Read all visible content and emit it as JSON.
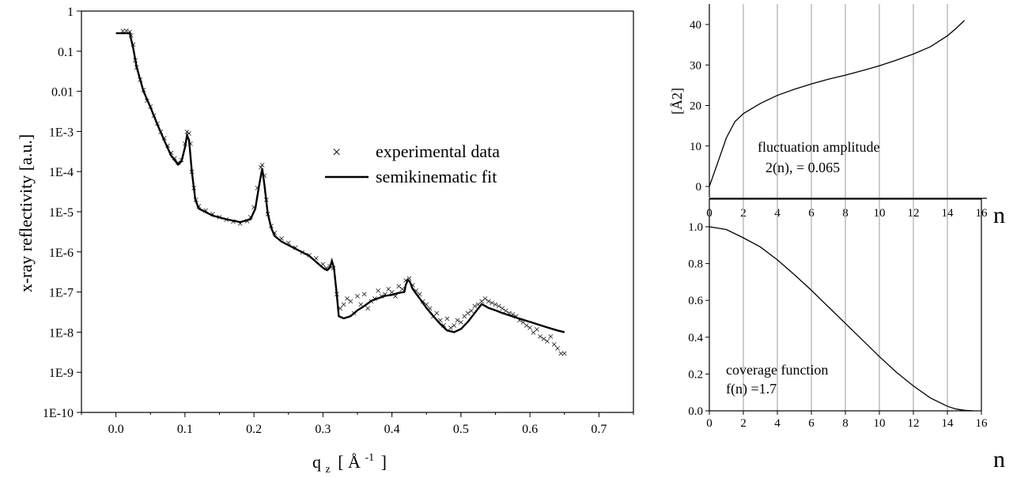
{
  "chart_data": [
    {
      "type": "scatter",
      "y_scale": "log",
      "xlabel_main": "q",
      "xlabel_sub": "z",
      "xlabel_unit_open": "[ Å",
      "xlabel_unit_exp": "-1",
      "xlabel_unit_close": "]",
      "ylabel": "x-ray reflectivity [a.u.]",
      "xlim": [
        -0.05,
        0.75
      ],
      "ylim": [
        1e-10,
        1
      ],
      "x_ticks": [
        0.0,
        0.1,
        0.2,
        0.3,
        0.4,
        0.5,
        0.6,
        0.7
      ],
      "x_tick_labels": [
        "0.0",
        "0.1",
        "0.2",
        "0.3",
        "0.4",
        "0.5",
        "0.6",
        "0.7"
      ],
      "y_tick_labels": [
        "1",
        "0.1",
        "0.01",
        "1E-3",
        "1E-4",
        "1E-5",
        "1E-6",
        "1E-7",
        "1E-8",
        "1E-9",
        "1E-10"
      ],
      "legend": {
        "position": "center-right",
        "entries": [
          {
            "marker": "×",
            "label": "experimental data"
          },
          {
            "marker": "line",
            "label": "semikinematic fit"
          }
        ]
      },
      "series": [
        {
          "name": "semikinematic fit",
          "style": "line",
          "x": [
            0.0,
            0.01,
            0.015,
            0.02,
            0.025,
            0.03,
            0.04,
            0.05,
            0.06,
            0.07,
            0.08,
            0.09,
            0.095,
            0.1,
            0.103,
            0.106,
            0.11,
            0.115,
            0.12,
            0.14,
            0.16,
            0.18,
            0.195,
            0.202,
            0.207,
            0.212,
            0.215,
            0.22,
            0.225,
            0.23,
            0.24,
            0.26,
            0.28,
            0.3,
            0.306,
            0.31,
            0.313,
            0.316,
            0.32,
            0.323,
            0.33,
            0.34,
            0.35,
            0.36,
            0.37,
            0.38,
            0.39,
            0.4,
            0.41,
            0.418,
            0.42,
            0.423,
            0.426,
            0.43,
            0.44,
            0.45,
            0.46,
            0.47,
            0.48,
            0.49,
            0.5,
            0.51,
            0.52,
            0.53,
            0.535,
            0.54,
            0.55,
            0.56,
            0.58,
            0.6,
            0.62,
            0.64,
            0.65
          ],
          "y": [
            0.28,
            0.28,
            0.28,
            0.28,
            0.12,
            0.04,
            0.01,
            0.004,
            0.0015,
            0.0006,
            0.00025,
            0.00015,
            0.00018,
            0.0004,
            0.0008,
            0.0006,
            0.0001,
            2e-05,
            1.2e-05,
            8e-06,
            6.5e-06,
            5.5e-06,
            6.5e-06,
            1.2e-05,
            4e-05,
            0.00012,
            5e-05,
            9e-06,
            4e-06,
            2.5e-06,
            1.8e-06,
            1.2e-06,
            8e-07,
            4e-07,
            3.5e-07,
            4e-07,
            6e-07,
            4e-07,
            9e-08,
            2.5e-08,
            2.2e-08,
            2.5e-08,
            3.5e-08,
            4.5e-08,
            6e-08,
            7e-08,
            8e-08,
            8.5e-08,
            9.5e-08,
            1e-07,
            1.5e-07,
            2e-07,
            1.8e-07,
            1.2e-07,
            7e-08,
            4e-08,
            2.5e-08,
            1.6e-08,
            1.1e-08,
            1e-08,
            1.2e-08,
            1.8e-08,
            3e-08,
            5e-08,
            4.5e-08,
            4e-08,
            3.5e-08,
            3e-08,
            2.3e-08,
            1.8e-08,
            1.4e-08,
            1.1e-08,
            1e-08
          ]
        },
        {
          "name": "experimental data",
          "style": "marker-x",
          "x": [
            0.01,
            0.015,
            0.02,
            0.022,
            0.025,
            0.028,
            0.03,
            0.035,
            0.04,
            0.045,
            0.05,
            0.055,
            0.06,
            0.065,
            0.07,
            0.075,
            0.08,
            0.085,
            0.09,
            0.095,
            0.1,
            0.103,
            0.106,
            0.108,
            0.11,
            0.113,
            0.116,
            0.12,
            0.13,
            0.14,
            0.15,
            0.16,
            0.17,
            0.18,
            0.19,
            0.195,
            0.2,
            0.205,
            0.21,
            0.212,
            0.215,
            0.218,
            0.22,
            0.225,
            0.23,
            0.24,
            0.25,
            0.26,
            0.27,
            0.28,
            0.29,
            0.3,
            0.305,
            0.31,
            0.315,
            0.32,
            0.325,
            0.33,
            0.335,
            0.34,
            0.345,
            0.35,
            0.355,
            0.36,
            0.365,
            0.37,
            0.375,
            0.38,
            0.385,
            0.39,
            0.395,
            0.4,
            0.405,
            0.41,
            0.415,
            0.42,
            0.425,
            0.43,
            0.435,
            0.44,
            0.445,
            0.45,
            0.455,
            0.46,
            0.465,
            0.47,
            0.475,
            0.48,
            0.485,
            0.49,
            0.495,
            0.5,
            0.505,
            0.51,
            0.515,
            0.52,
            0.525,
            0.53,
            0.535,
            0.54,
            0.545,
            0.55,
            0.555,
            0.56,
            0.565,
            0.57,
            0.575,
            0.58,
            0.585,
            0.59,
            0.595,
            0.6,
            0.605,
            0.61,
            0.615,
            0.62,
            0.625,
            0.63,
            0.635,
            0.64,
            0.645,
            0.65
          ],
          "y": [
            0.32,
            0.33,
            0.31,
            0.25,
            0.15,
            0.06,
            0.04,
            0.02,
            0.011,
            0.006,
            0.0042,
            0.0025,
            0.0016,
            0.001,
            0.0007,
            0.00045,
            0.0003,
            0.00022,
            0.00017,
            0.0002,
            0.0005,
            0.001,
            0.0009,
            0.0005,
            0.0001,
            4e-05,
            2e-05,
            1.4e-05,
            1.1e-05,
            9e-06,
            7.5e-06,
            6.5e-06,
            5.8e-06,
            5.2e-06,
            6e-06,
            7.5e-06,
            1.3e-05,
            4e-05,
            0.00013,
            0.00015,
            8e-05,
            2e-05,
            9e-06,
            4.5e-06,
            3e-06,
            2.2e-06,
            1.7e-06,
            1.3e-06,
            1e-06,
            8.5e-07,
            7e-07,
            5e-07,
            4e-07,
            4.5e-07,
            4e-07,
            9e-08,
            4e-08,
            5e-08,
            7e-08,
            6e-08,
            3e-08,
            8e-08,
            5e-08,
            9e-08,
            4e-08,
            6e-08,
            7e-08,
            1.1e-07,
            8e-08,
            9e-08,
            1.2e-07,
            1e-07,
            8e-08,
            1.4e-07,
            1.2e-07,
            2e-07,
            2.2e-07,
            1.5e-07,
            1.1e-07,
            9e-08,
            6e-08,
            5e-08,
            4e-08,
            2.5e-08,
            3e-08,
            2e-08,
            1.5e-08,
            2.2e-08,
            1.3e-08,
            1.5e-08,
            2e-08,
            1.8e-08,
            2.5e-08,
            3e-08,
            3.5e-08,
            4.5e-08,
            5e-08,
            6e-08,
            7e-08,
            6e-08,
            5.5e-08,
            5e-08,
            4.5e-08,
            4e-08,
            3.5e-08,
            3e-08,
            2.8e-08,
            2.5e-08,
            2e-08,
            1.8e-08,
            1.5e-08,
            1.3e-08,
            1e-08,
            1.2e-08,
            8e-09,
            7e-09,
            6e-09,
            8e-09,
            5e-09,
            4e-09,
            3e-09,
            3e-09
          ]
        }
      ]
    },
    {
      "type": "line",
      "ylabel": "[Å2]",
      "xlabel": "n",
      "xlim": [
        0,
        16
      ],
      "ylim": [
        -3,
        45
      ],
      "x_tick_labels": [
        "0",
        "2",
        "4",
        "6",
        "8",
        "10",
        "12",
        "14",
        "16"
      ],
      "y_tick_labels": [
        "0",
        "10",
        "20",
        "30",
        "40"
      ],
      "vertical_grid_x": [
        2,
        4,
        6,
        8,
        10,
        12,
        14
      ],
      "annotation_line1": "fluctuation amplitude",
      "annotation_line2": "2(n),    = 0.065",
      "series": [
        {
          "x": [
            0,
            0.5,
            1,
            1.5,
            2,
            3,
            4,
            5,
            6,
            7,
            8,
            9,
            10,
            11,
            12,
            13,
            14,
            14.5,
            15
          ],
          "y": [
            0,
            6,
            12,
            16,
            18,
            20.5,
            22.5,
            24,
            25.3,
            26.5,
            27.5,
            28.6,
            29.8,
            31.2,
            32.7,
            34.5,
            37.2,
            39,
            41
          ]
        }
      ]
    },
    {
      "type": "line",
      "xlabel": "n",
      "xlim": [
        0,
        16
      ],
      "ylim": [
        0,
        1.05
      ],
      "x_tick_labels": [
        "0",
        "2",
        "4",
        "6",
        "8",
        "10",
        "12",
        "14",
        "16"
      ],
      "y_tick_labels": [
        "0.0",
        "0.2",
        "0.4",
        "0.6",
        "0.8",
        "1.0"
      ],
      "vertical_grid_x": [
        2,
        4,
        6,
        8,
        10,
        12,
        14
      ],
      "annotation_line1": "coverage function",
      "annotation_line2": "f(n)      =1.7",
      "series": [
        {
          "x": [
            0,
            1,
            2,
            3,
            4,
            5,
            6,
            7,
            8,
            9,
            10,
            11,
            12,
            13,
            14,
            14.5,
            15,
            15.5
          ],
          "y": [
            1.0,
            0.985,
            0.94,
            0.89,
            0.82,
            0.74,
            0.655,
            0.565,
            0.475,
            0.385,
            0.295,
            0.21,
            0.135,
            0.07,
            0.025,
            0.01,
            0.003,
            0.0
          ]
        }
      ]
    }
  ]
}
